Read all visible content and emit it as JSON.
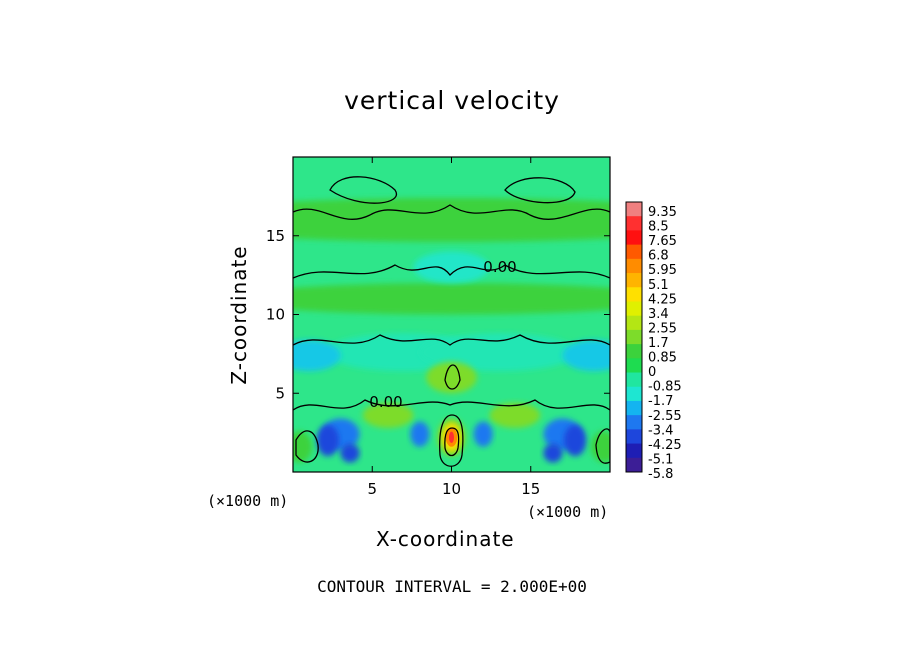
{
  "chart_data": {
    "type": "heatmap",
    "title": "vertical velocity",
    "xlabel": "X-coordinate",
    "ylabel": "Z-coordinate",
    "x_unit": "(×1000 m)",
    "z_unit": "(×1000 m)",
    "xlim": [
      0,
      20
    ],
    "ylim": [
      0,
      20
    ],
    "x_ticks": [
      5,
      10,
      15
    ],
    "y_ticks": [
      5,
      10,
      15
    ],
    "contour_interval_text": "CONTOUR INTERVAL = 2.000E+00",
    "contour_labels": [
      "0.00",
      "0.00"
    ],
    "colorbar": {
      "labels": [
        "9.35",
        "8.5",
        "7.65",
        "6.8",
        "5.95",
        "5.1",
        "4.25",
        "3.4",
        "2.55",
        "1.7",
        "0.85",
        "0",
        "-0.85",
        "-1.7",
        "-2.55",
        "-3.4",
        "-4.25",
        "-5.1",
        "-5.8"
      ],
      "colors": [
        "#f08080",
        "#ff3030",
        "#ff1010",
        "#ff5a00",
        "#ff8c00",
        "#ffb400",
        "#ffe000",
        "#e0f000",
        "#b4e614",
        "#7ddc2a",
        "#3cd23c",
        "#1edc50",
        "#20e6a0",
        "#1ee6d2",
        "#14b4f0",
        "#1e78f0",
        "#1e46dc",
        "#1e1eb4",
        "#3c1e96"
      ]
    },
    "notable_features": {
      "max_updraft": {
        "x": 10,
        "z": 2,
        "value": 9.35
      },
      "min_downdraft": {
        "value": -5.8
      }
    }
  }
}
